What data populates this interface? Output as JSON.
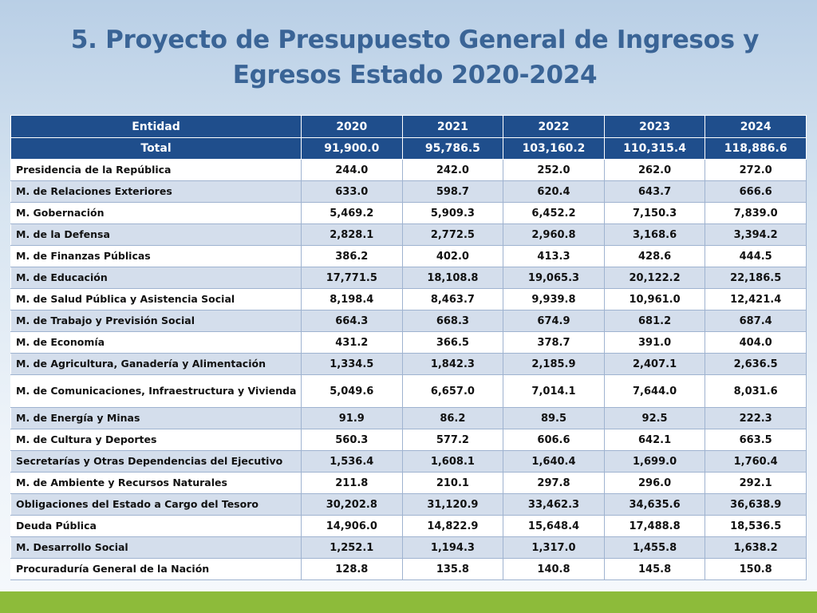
{
  "title": {
    "line1": "5. Proyecto de Presupuesto General de Ingresos y",
    "line2": "Egresos Estado 2020-2024"
  },
  "table": {
    "headers": [
      "Entidad",
      "2020",
      "2021",
      "2022",
      "2023",
      "2024"
    ],
    "total": [
      "Total",
      "91,900.0",
      "95,786.5",
      "103,160.2",
      "110,315.4",
      "118,886.6"
    ],
    "rows": [
      [
        "Presidencia de la República",
        "244.0",
        "242.0",
        "252.0",
        "262.0",
        "272.0"
      ],
      [
        "M. de Relaciones Exteriores",
        "633.0",
        "598.7",
        "620.4",
        "643.7",
        "666.6"
      ],
      [
        "M. Gobernación",
        "5,469.2",
        "5,909.3",
        "6,452.2",
        "7,150.3",
        "7,839.0"
      ],
      [
        "M. de la Defensa",
        "2,828.1",
        "2,772.5",
        "2,960.8",
        "3,168.6",
        "3,394.2"
      ],
      [
        "M. de Finanzas Públicas",
        "386.2",
        "402.0",
        "413.3",
        "428.6",
        "444.5"
      ],
      [
        "M. de Educación",
        "17,771.5",
        "18,108.8",
        "19,065.3",
        "20,122.2",
        "22,186.5"
      ],
      [
        "M. de Salud Pública y Asistencia Social",
        "8,198.4",
        "8,463.7",
        "9,939.8",
        "10,961.0",
        "12,421.4"
      ],
      [
        "M. de Trabajo y Previsión Social",
        "664.3",
        "668.3",
        "674.9",
        "681.2",
        "687.4"
      ],
      [
        "M. de Economía",
        "431.2",
        "366.5",
        "378.7",
        "391.0",
        "404.0"
      ],
      [
        "M. de Agricultura, Ganadería y Alimentación",
        "1,334.5",
        "1,842.3",
        "2,185.9",
        "2,407.1",
        "2,636.5"
      ],
      [
        "M. de Comunicaciones, Infraestructura y Vivienda",
        "5,049.6",
        "6,657.0",
        "7,014.1",
        "7,644.0",
        "8,031.6"
      ],
      [
        "M. de Energía y Minas",
        "91.9",
        "86.2",
        "89.5",
        "92.5",
        "222.3"
      ],
      [
        "M. de Cultura y Deportes",
        "560.3",
        "577.2",
        "606.6",
        "642.1",
        "663.5"
      ],
      [
        "Secretarías y Otras Dependencias del Ejecutivo",
        "1,536.4",
        "1,608.1",
        "1,640.4",
        "1,699.0",
        "1,760.4"
      ],
      [
        "M. de Ambiente y Recursos Naturales",
        "211.8",
        "210.1",
        "297.8",
        "296.0",
        "292.1"
      ],
      [
        "Obligaciones del Estado a Cargo del Tesoro",
        "30,202.8",
        "31,120.9",
        "33,462.3",
        "34,635.6",
        "36,638.9"
      ],
      [
        "Deuda Pública",
        "14,906.0",
        "14,822.9",
        "15,648.4",
        "17,488.8",
        "18,536.5"
      ],
      [
        "M. Desarrollo Social",
        "1,252.1",
        "1,194.3",
        "1,317.0",
        "1,455.8",
        "1,638.2"
      ],
      [
        "Procuraduría General de la Nación",
        "128.8",
        "135.8",
        "140.8",
        "145.8",
        "150.8"
      ]
    ]
  },
  "colors": {
    "title": "#3a6496",
    "header_bg": "#1f4e8c",
    "row_alt_bg": "#d4deec",
    "footer_bar": "#8dbb3a"
  }
}
